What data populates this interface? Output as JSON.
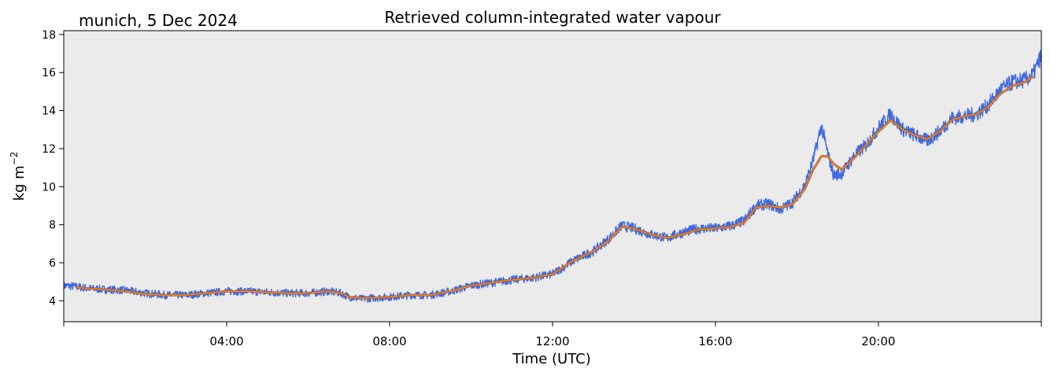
{
  "location_label": "munich, 5 Dec 2024",
  "chart_data": {
    "type": "line",
    "title": "Retrieved column-integrated water vapour",
    "xlabel": "Time (UTC)",
    "ylabel": "kg m",
    "ylabel_superscript": "−2",
    "xlim_hours": [
      0,
      24
    ],
    "ylim": [
      2.9,
      18.2
    ],
    "grid": false,
    "background": "#ebebeb",
    "xticks": [
      {
        "hour": 4,
        "label": "04:00"
      },
      {
        "hour": 8,
        "label": "08:00"
      },
      {
        "hour": 12,
        "label": "12:00"
      },
      {
        "hour": 16,
        "label": "16:00"
      },
      {
        "hour": 20,
        "label": "20:00"
      }
    ],
    "xticks_minor_hours": [
      0,
      24
    ],
    "yticks": [
      4,
      6,
      8,
      10,
      12,
      14,
      16,
      18
    ],
    "series": [
      {
        "role": "raw",
        "color": "#4169e1",
        "x_hours": [
          0.0,
          0.3,
          0.6,
          1.0,
          1.5,
          2.0,
          2.5,
          3.0,
          3.5,
          4.0,
          4.5,
          5.0,
          5.5,
          6.0,
          6.5,
          6.8,
          7.0,
          7.3,
          7.6,
          8.0,
          8.5,
          9.0,
          9.5,
          10.0,
          10.5,
          11.0,
          11.5,
          12.0,
          12.5,
          13.0,
          13.4,
          13.7,
          14.0,
          14.4,
          14.8,
          15.2,
          15.6,
          16.0,
          16.4,
          16.7,
          17.0,
          17.3,
          17.6,
          17.9,
          18.2,
          18.4,
          18.6,
          18.75,
          18.9,
          19.1,
          19.4,
          19.7,
          20.0,
          20.3,
          20.6,
          20.9,
          21.2,
          21.5,
          21.8,
          22.1,
          22.4,
          22.7,
          23.0,
          23.3,
          23.6,
          23.8,
          24.0
        ],
        "values": [
          4.8,
          4.75,
          4.65,
          4.6,
          4.55,
          4.4,
          4.3,
          4.3,
          4.4,
          4.5,
          4.5,
          4.45,
          4.4,
          4.4,
          4.5,
          4.4,
          4.2,
          4.1,
          4.15,
          4.2,
          4.3,
          4.3,
          4.5,
          4.8,
          4.95,
          5.1,
          5.2,
          5.4,
          6.1,
          6.6,
          7.3,
          7.95,
          7.8,
          7.5,
          7.3,
          7.6,
          7.8,
          7.8,
          7.95,
          8.2,
          9.0,
          9.1,
          8.8,
          9.2,
          10.1,
          11.4,
          13.2,
          11.8,
          10.6,
          10.7,
          11.6,
          12.2,
          13.1,
          13.8,
          13.0,
          12.7,
          12.4,
          12.9,
          13.6,
          13.7,
          13.8,
          14.3,
          15.1,
          15.5,
          15.6,
          15.9,
          16.9
        ]
      },
      {
        "role": "smoothed",
        "color": "#e8863a",
        "x_hours": [
          0.3,
          0.6,
          1.0,
          1.5,
          2.0,
          2.5,
          3.0,
          3.5,
          4.0,
          4.5,
          5.0,
          5.5,
          6.0,
          6.5,
          6.8,
          7.0,
          7.3,
          7.6,
          8.0,
          8.5,
          9.0,
          9.5,
          10.0,
          10.5,
          11.0,
          11.5,
          12.0,
          12.5,
          13.0,
          13.4,
          13.7,
          14.0,
          14.4,
          14.8,
          15.2,
          15.6,
          16.0,
          16.4,
          16.7,
          17.0,
          17.3,
          17.6,
          17.9,
          18.2,
          18.4,
          18.6,
          18.75,
          18.9,
          19.1,
          19.4,
          19.7,
          20.0,
          20.3,
          20.6,
          20.9,
          21.2,
          21.5,
          21.8,
          22.1,
          22.4,
          22.7,
          23.0,
          23.3,
          23.6,
          23.8
        ],
        "values": [
          4.7,
          4.65,
          4.6,
          4.5,
          4.35,
          4.3,
          4.3,
          4.4,
          4.5,
          4.5,
          4.45,
          4.4,
          4.4,
          4.5,
          4.4,
          4.2,
          4.15,
          4.15,
          4.2,
          4.3,
          4.3,
          4.5,
          4.8,
          4.95,
          5.1,
          5.2,
          5.4,
          6.1,
          6.6,
          7.2,
          7.9,
          7.8,
          7.5,
          7.3,
          7.5,
          7.75,
          7.8,
          7.9,
          8.1,
          8.9,
          9.0,
          8.9,
          9.1,
          9.9,
          10.9,
          11.6,
          11.6,
          11.2,
          10.9,
          11.5,
          12.2,
          12.9,
          13.5,
          13.0,
          12.7,
          12.5,
          12.9,
          13.5,
          13.7,
          13.8,
          14.2,
          14.9,
          15.3,
          15.5,
          15.8
        ]
      }
    ]
  }
}
